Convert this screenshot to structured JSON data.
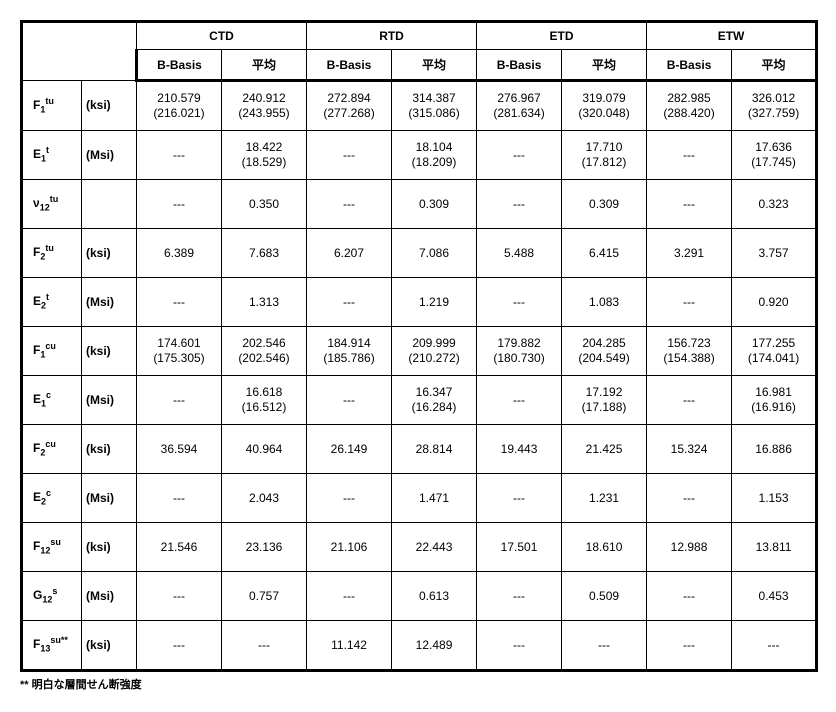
{
  "columns": {
    "groups": [
      "CTD",
      "RTD",
      "ETD",
      "ETW"
    ],
    "sub": [
      "B-Basis",
      "平均"
    ]
  },
  "footnote": "** 明白な層間せん断強度",
  "rows": [
    {
      "symbol": {
        "base": "F",
        "sub": "1",
        "sup": "tu"
      },
      "unit": "(ksi)",
      "vals": {
        "ctd_b": "210.579\n(216.021)",
        "ctd_m": "240.912\n(243.955)",
        "rtd_b": "272.894\n(277.268)",
        "rtd_m": "314.387\n(315.086)",
        "etd_b": "276.967\n(281.634)",
        "etd_m": "319.079\n(320.048)",
        "etw_b": "282.985\n(288.420)",
        "etw_m": "326.012\n(327.759)"
      }
    },
    {
      "symbol": {
        "base": "E",
        "sub": "1",
        "sup": "t"
      },
      "unit": "(Msi)",
      "vals": {
        "ctd_b": "---",
        "ctd_m": "18.422\n(18.529)",
        "rtd_b": "---",
        "rtd_m": "18.104\n(18.209)",
        "etd_b": "---",
        "etd_m": "17.710\n(17.812)",
        "etw_b": "---",
        "etw_m": "17.636\n(17.745)"
      }
    },
    {
      "symbol": {
        "base": "ν",
        "sub": "12",
        "sup": "tu"
      },
      "unit": "",
      "vals": {
        "ctd_b": "---",
        "ctd_m": "0.350",
        "rtd_b": "---",
        "rtd_m": "0.309",
        "etd_b": "---",
        "etd_m": "0.309",
        "etw_b": "---",
        "etw_m": "0.323"
      }
    },
    {
      "symbol": {
        "base": "F",
        "sub": "2",
        "sup": "tu"
      },
      "unit": "(ksi)",
      "vals": {
        "ctd_b": "6.389",
        "ctd_m": "7.683",
        "rtd_b": "6.207",
        "rtd_m": "7.086",
        "etd_b": "5.488",
        "etd_m": "6.415",
        "etw_b": "3.291",
        "etw_m": "3.757"
      }
    },
    {
      "symbol": {
        "base": "E",
        "sub": "2",
        "sup": "t"
      },
      "unit": "(Msi)",
      "vals": {
        "ctd_b": "---",
        "ctd_m": "1.313",
        "rtd_b": "---",
        "rtd_m": "1.219",
        "etd_b": "---",
        "etd_m": "1.083",
        "etw_b": "---",
        "etw_m": "0.920"
      }
    },
    {
      "symbol": {
        "base": "F",
        "sub": "1",
        "sup": "cu"
      },
      "unit": "(ksi)",
      "vals": {
        "ctd_b": "174.601\n(175.305)",
        "ctd_m": "202.546\n(202.546)",
        "rtd_b": "184.914\n(185.786)",
        "rtd_m": "209.999\n(210.272)",
        "etd_b": "179.882\n(180.730)",
        "etd_m": "204.285\n(204.549)",
        "etw_b": "156.723\n(154.388)",
        "etw_m": "177.255\n(174.041)"
      }
    },
    {
      "symbol": {
        "base": "E",
        "sub": "1",
        "sup": "c"
      },
      "unit": "(Msi)",
      "vals": {
        "ctd_b": "---",
        "ctd_m": "16.618\n(16.512)",
        "rtd_b": "---",
        "rtd_m": "16.347\n(16.284)",
        "etd_b": "---",
        "etd_m": "17.192\n(17.188)",
        "etw_b": "---",
        "etw_m": "16.981\n(16.916)"
      }
    },
    {
      "symbol": {
        "base": "F",
        "sub": "2",
        "sup": "cu"
      },
      "unit": "(ksi)",
      "vals": {
        "ctd_b": "36.594",
        "ctd_m": "40.964",
        "rtd_b": "26.149",
        "rtd_m": "28.814",
        "etd_b": "19.443",
        "etd_m": "21.425",
        "etw_b": "15.324",
        "etw_m": "16.886"
      }
    },
    {
      "symbol": {
        "base": "E",
        "sub": "2",
        "sup": "c"
      },
      "unit": "(Msi)",
      "vals": {
        "ctd_b": "---",
        "ctd_m": "2.043",
        "rtd_b": "---",
        "rtd_m": "1.471",
        "etd_b": "---",
        "etd_m": "1.231",
        "etw_b": "---",
        "etw_m": "1.153"
      }
    },
    {
      "symbol": {
        "base": "F",
        "sub": "12",
        "sup": "su"
      },
      "unit": "(ksi)",
      "vals": {
        "ctd_b": "21.546",
        "ctd_m": "23.136",
        "rtd_b": "21.106",
        "rtd_m": "22.443",
        "etd_b": "17.501",
        "etd_m": "18.610",
        "etw_b": "12.988",
        "etw_m": "13.811"
      }
    },
    {
      "symbol": {
        "base": "G",
        "sub": "12",
        "sup": "s"
      },
      "unit": "(Msi)",
      "vals": {
        "ctd_b": "---",
        "ctd_m": "0.757",
        "rtd_b": "---",
        "rtd_m": "0.613",
        "etd_b": "---",
        "etd_m": "0.509",
        "etw_b": "---",
        "etw_m": "0.453"
      }
    },
    {
      "symbol": {
        "base": "F",
        "sub": "13",
        "sup": "su**"
      },
      "unit": "(ksi)",
      "vals": {
        "ctd_b": "---",
        "ctd_m": "---",
        "rtd_b": "11.142",
        "rtd_m": "12.489",
        "etd_b": "---",
        "etd_m": "---",
        "etw_b": "---",
        "etw_m": "---"
      }
    }
  ]
}
